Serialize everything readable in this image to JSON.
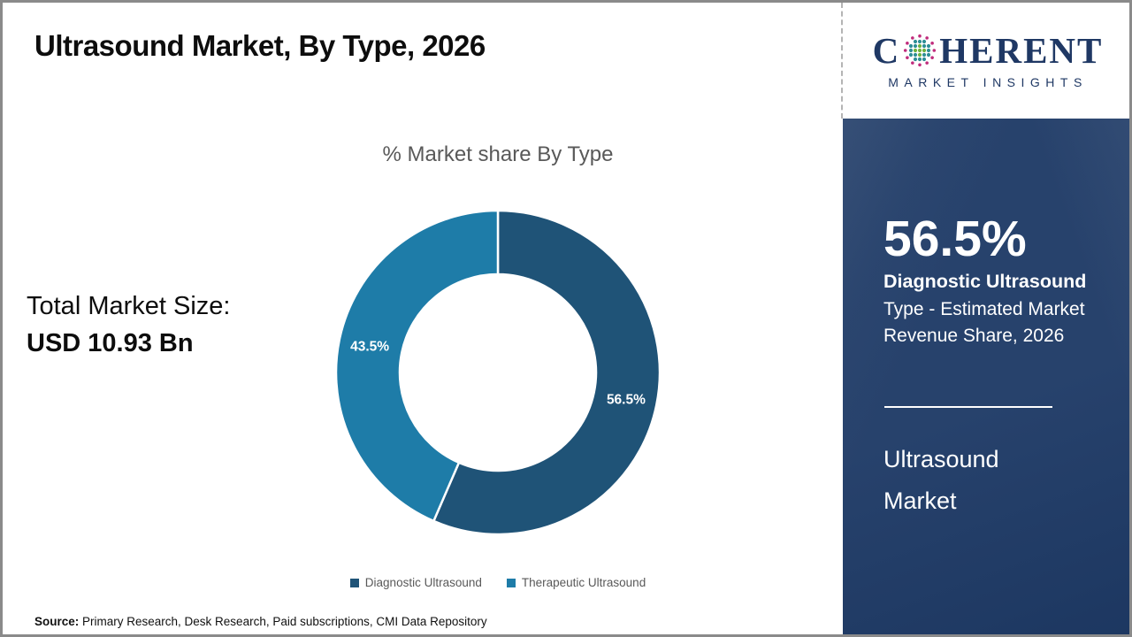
{
  "page": {
    "title": "Ultrasound Market, By Type, 2026",
    "source_label": "Source:",
    "source_text": " Primary Research, Desk Research, Paid subscriptions, CMI Data Repository"
  },
  "logo": {
    "brand_prefix": "C",
    "brand_suffix": "HERENT",
    "subtitle": "MARKET INSIGHTS"
  },
  "left_panel": {
    "total_label": "Total Market Size:",
    "total_value": "USD 10.93 Bn"
  },
  "chart_data": {
    "type": "pie",
    "donut": true,
    "title": "% Market share By Type",
    "categories": [
      "Diagnostic Ultrasound",
      "Therapeutic Ultrasound"
    ],
    "values": [
      56.5,
      43.5
    ],
    "labels": [
      "56.5%",
      "43.5%"
    ],
    "colors": [
      "#1f5377",
      "#1e7ca8"
    ],
    "start_angle_deg": 0,
    "direction": "clockwise",
    "legend_position": "bottom"
  },
  "sidebar": {
    "stat_value": "56.5%",
    "stat_title": "Diagnostic Ultrasound",
    "stat_desc": "Type - Estimated Market Revenue Share, 2026",
    "market_name": "Ultrasound Market"
  },
  "colors": {
    "sidebar_bg": "#1e3a66",
    "brand_navy": "#1f3864",
    "text_gray": "#595959",
    "slice_diagnostic": "#1f5377",
    "slice_therapeutic": "#1e7ca8",
    "dot_green": "#6cb33f",
    "dot_teal": "#2e8f96",
    "dot_magenta": "#c02c7c"
  }
}
